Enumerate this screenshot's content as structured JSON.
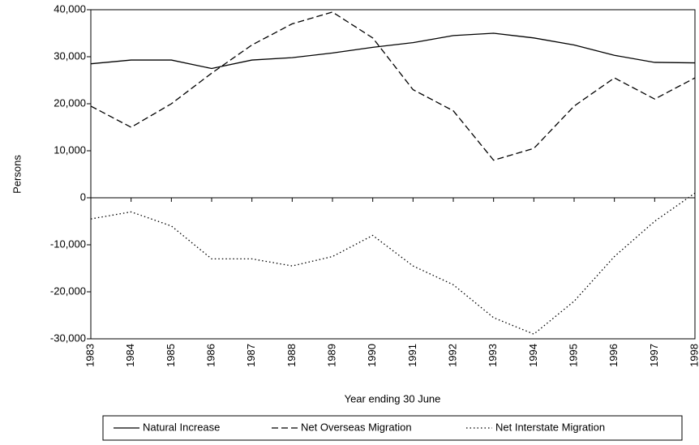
{
  "chart_data": {
    "type": "line",
    "y_label": "Persons",
    "x_label": "Year ending 30 June",
    "categories": [
      "1983",
      "1984",
      "1985",
      "1986",
      "1987",
      "1988",
      "1989",
      "1990",
      "1991",
      "1992",
      "1993",
      "1994",
      "1995",
      "1996",
      "1997",
      "1998"
    ],
    "series": [
      {
        "name": "Natural Increase",
        "color": "#000000",
        "style": "solid",
        "values": [
          28500,
          29300,
          29300,
          27500,
          29300,
          29800,
          30800,
          32000,
          33000,
          34500,
          35000,
          34000,
          32500,
          30300,
          28800,
          28700
        ]
      },
      {
        "name": "Net Overseas Migration",
        "color": "#000000",
        "style": "dashed",
        "values": [
          19500,
          15000,
          20000,
          26500,
          32500,
          37000,
          39500,
          34000,
          23000,
          18500,
          8000,
          10500,
          19500,
          25500,
          21000,
          25500
        ]
      },
      {
        "name": "Net Interstate Migration",
        "color": "#000000",
        "style": "dotted",
        "values": [
          -4500,
          -3000,
          -6000,
          -13000,
          -13000,
          -14500,
          -12500,
          -8000,
          -14500,
          -18500,
          -25500,
          -29000,
          -22000,
          -12500,
          -5000,
          1000
        ]
      }
    ],
    "ylim": [
      -30000,
      40000
    ],
    "yticks": [
      {
        "value": -30000,
        "label": "-30,000"
      },
      {
        "value": -20000,
        "label": "-20,000"
      },
      {
        "value": -10000,
        "label": "-10,000"
      },
      0,
      {
        "value": 10000,
        "label": "10,000"
      },
      {
        "value": 20000,
        "label": "20,000"
      },
      {
        "value": 30000,
        "label": "30,000"
      },
      {
        "value": 40000,
        "label": "40,000"
      }
    ],
    "legend": "bottom"
  }
}
